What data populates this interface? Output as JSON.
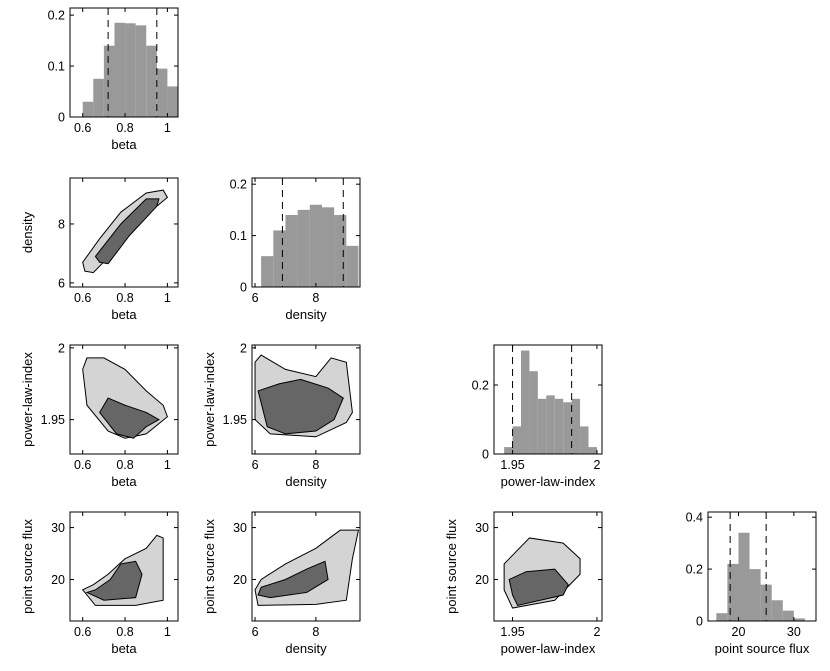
{
  "chart_data": [
    {
      "type": "histogram",
      "xlabel": "beta",
      "xlim": [
        0.54,
        1.05
      ],
      "xticks": [
        0.6,
        0.8,
        1
      ],
      "ylim": [
        0,
        0.214
      ],
      "yticks": [
        0,
        0.1,
        0.2
      ],
      "bins": [
        0.6,
        0.65,
        0.7,
        0.75,
        0.8,
        0.85,
        0.9,
        0.95,
        1.0,
        1.05
      ],
      "counts": [
        0.03,
        0.075,
        0.14,
        0.185,
        0.184,
        0.18,
        0.14,
        0.095,
        0.06
      ],
      "color": "#999999",
      "dashed_lines": [
        0.72,
        0.95
      ]
    },
    {
      "type": "contour",
      "xlabel": "beta",
      "ylabel": "density",
      "xlim": [
        0.54,
        1.05
      ],
      "xticks": [
        0.6,
        0.8,
        1
      ],
      "ylim": [
        5.86,
        9.56
      ],
      "yticks": [
        6,
        8
      ],
      "contours": [
        {
          "color": "#d4d4d4",
          "x": [
            0.61,
            0.65,
            0.78,
            0.9,
            1.0,
            0.98,
            0.9,
            0.78,
            0.68,
            0.6
          ],
          "y": [
            6.4,
            6.35,
            7.3,
            8.3,
            8.9,
            9.15,
            9.05,
            8.4,
            7.5,
            6.7
          ]
        },
        {
          "color": "#666666",
          "x": [
            0.68,
            0.72,
            0.82,
            0.95,
            0.96,
            0.9,
            0.78,
            0.66
          ],
          "y": [
            6.7,
            6.65,
            7.6,
            8.6,
            8.85,
            8.85,
            8.0,
            6.9
          ]
        }
      ]
    },
    {
      "type": "histogram",
      "xlabel": "density",
      "xlim": [
        5.9,
        9.45
      ],
      "xticks": [
        6,
        8
      ],
      "ylim": [
        0,
        0.212
      ],
      "yticks": [
        0,
        0.1,
        0.2
      ],
      "bins": [
        6.2,
        6.6,
        7.0,
        7.4,
        7.8,
        8.2,
        8.6,
        9.0,
        9.4
      ],
      "counts": [
        0.06,
        0.11,
        0.14,
        0.15,
        0.16,
        0.155,
        0.14,
        0.08
      ],
      "color": "#999999",
      "dashed_lines": [
        6.9,
        8.9
      ]
    },
    {
      "type": "contour",
      "xlabel": "beta",
      "ylabel": "power-law-index",
      "xlim": [
        0.54,
        1.05
      ],
      "xticks": [
        0.6,
        0.8,
        1
      ],
      "ylim": [
        1.926,
        2.002
      ],
      "yticks": [
        1.95,
        2
      ],
      "contours": [
        {
          "color": "#d4d4d4",
          "x": [
            0.6,
            0.62,
            0.72,
            0.8,
            0.9,
            1.0,
            0.98,
            0.9,
            0.8,
            0.7,
            0.62
          ],
          "y": [
            1.985,
            1.96,
            1.942,
            1.937,
            1.94,
            1.952,
            1.96,
            1.97,
            1.985,
            1.993,
            1.993
          ]
        },
        {
          "color": "#666666",
          "x": [
            0.72,
            0.8,
            0.9,
            0.96,
            0.9,
            0.84,
            0.76,
            0.68
          ],
          "y": [
            1.965,
            1.96,
            1.955,
            1.95,
            1.945,
            1.937,
            1.94,
            1.955
          ]
        }
      ]
    },
    {
      "type": "contour",
      "xlabel": "density",
      "ylabel": "power-law-index",
      "xlim": [
        5.9,
        9.45
      ],
      "xticks": [
        6,
        8
      ],
      "ylim": [
        1.926,
        2.002
      ],
      "yticks": [
        1.95,
        2
      ],
      "contours": [
        {
          "color": "#d4d4d4",
          "x": [
            6.0,
            6.0,
            6.5,
            8.0,
            9.0,
            9.2,
            9.0,
            8.5,
            8.0,
            7.0,
            6.2
          ],
          "y": [
            1.99,
            1.95,
            1.94,
            1.938,
            1.948,
            1.955,
            1.99,
            1.993,
            1.98,
            1.985,
            1.995
          ]
        },
        {
          "color": "#666666",
          "x": [
            6.1,
            6.4,
            7.0,
            8.0,
            8.6,
            8.9,
            8.4,
            7.5,
            6.8
          ],
          "y": [
            1.97,
            1.945,
            1.94,
            1.942,
            1.95,
            1.965,
            1.972,
            1.978,
            1.975
          ]
        }
      ]
    },
    {
      "type": "histogram",
      "xlabel": "power-law-index",
      "xlim": [
        1.939,
        2.003
      ],
      "xticks": [
        1.95,
        2
      ],
      "ylim": [
        0,
        0.316
      ],
      "yticks": [
        0,
        0.2
      ],
      "bins": [
        1.945,
        1.95,
        1.955,
        1.96,
        1.965,
        1.97,
        1.975,
        1.98,
        1.985,
        1.99,
        1.995,
        2.0
      ],
      "counts": [
        0.02,
        0.08,
        0.3,
        0.24,
        0.16,
        0.17,
        0.16,
        0.15,
        0.16,
        0.08,
        0.02
      ],
      "color": "#999999",
      "dashed_lines": [
        1.95,
        1.985
      ]
    },
    {
      "type": "contour",
      "xlabel": "beta",
      "ylabel": "point source flux",
      "xlim": [
        0.54,
        1.05
      ],
      "xticks": [
        0.6,
        0.8,
        1
      ],
      "ylim": [
        12,
        33
      ],
      "yticks": [
        20,
        30
      ],
      "contours": [
        {
          "color": "#d4d4d4",
          "x": [
            0.6,
            0.66,
            0.85,
            0.98,
            0.98,
            0.95,
            0.9,
            0.8,
            0.72,
            0.65
          ],
          "y": [
            18,
            15,
            15,
            16,
            28,
            28.5,
            26,
            24,
            21,
            19
          ]
        },
        {
          "color": "#666666",
          "x": [
            0.62,
            0.7,
            0.85,
            0.88,
            0.85,
            0.78,
            0.73,
            0.66
          ],
          "y": [
            17.5,
            16,
            16.5,
            21,
            23.5,
            23,
            20,
            18
          ]
        }
      ]
    },
    {
      "type": "contour",
      "xlabel": "density",
      "ylabel": "point source flux",
      "xlim": [
        5.9,
        9.45
      ],
      "xticks": [
        6,
        8
      ],
      "ylim": [
        12,
        33
      ],
      "yticks": [
        20,
        30
      ],
      "contours": [
        {
          "color": "#d4d4d4",
          "x": [
            6.0,
            6.1,
            8.0,
            9.0,
            9.2,
            9.4,
            8.8,
            8.0,
            7.0,
            6.2
          ],
          "y": [
            18,
            15,
            15.2,
            16,
            24,
            29.5,
            29.5,
            26,
            23,
            20
          ]
        },
        {
          "color": "#666666",
          "x": [
            6.1,
            6.5,
            7.7,
            8.4,
            8.3,
            7.7,
            7.0,
            6.2
          ],
          "y": [
            17,
            16.5,
            17.5,
            20,
            23.5,
            22,
            20,
            18.5
          ]
        }
      ]
    },
    {
      "type": "contour",
      "xlabel": "power-law-index",
      "ylabel": "point source flux",
      "xlim": [
        1.939,
        2.003
      ],
      "xticks": [
        1.95,
        2
      ],
      "ylim": [
        12,
        33
      ],
      "yticks": [
        20,
        30
      ],
      "contours": [
        {
          "color": "#d4d4d4",
          "x": [
            1.945,
            1.95,
            1.975,
            1.99,
            1.99,
            1.98,
            1.96,
            1.945
          ],
          "y": [
            18,
            14.5,
            16,
            21,
            24,
            27,
            28,
            23
          ]
        },
        {
          "color": "#666666",
          "x": [
            1.95,
            1.953,
            1.98,
            1.983,
            1.975,
            1.958,
            1.948
          ],
          "y": [
            17,
            15,
            17,
            19,
            22,
            21.5,
            20
          ]
        }
      ]
    },
    {
      "type": "histogram",
      "xlabel": "point source flux",
      "xlim": [
        14.5,
        34
      ],
      "xticks": [
        20,
        30
      ],
      "ylim": [
        0,
        0.42
      ],
      "yticks": [
        0,
        0.2,
        0.4
      ],
      "bins": [
        16,
        18,
        20,
        22,
        24,
        26,
        28,
        30,
        32
      ],
      "counts": [
        0.03,
        0.22,
        0.34,
        0.2,
        0.14,
        0.08,
        0.04,
        0.01
      ],
      "color": "#999999",
      "dashed_lines": [
        18.5,
        25
      ]
    }
  ]
}
